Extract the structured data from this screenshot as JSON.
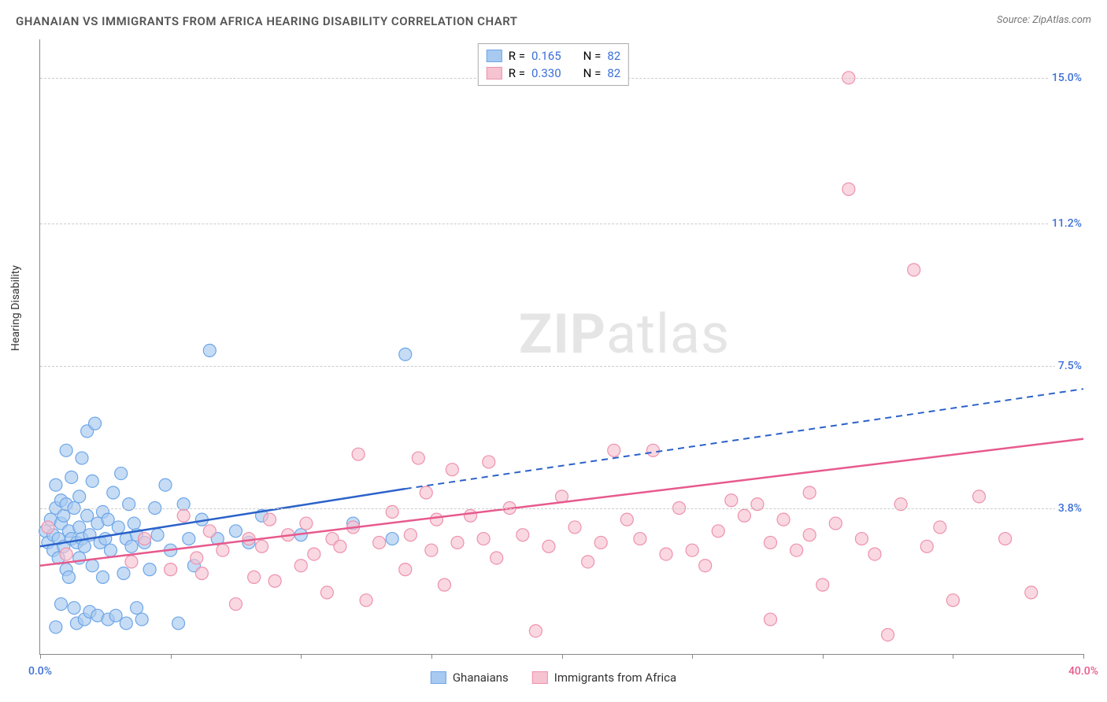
{
  "title": "GHANAIAN VS IMMIGRANTS FROM AFRICA HEARING DISABILITY CORRELATION CHART",
  "source": "Source: ZipAtlas.com",
  "ylabel": "Hearing Disability",
  "watermark_bold": "ZIP",
  "watermark_rest": "atlas",
  "chart": {
    "type": "scatter-with-regression",
    "xlim": [
      0,
      40
    ],
    "ylim": [
      0,
      16
    ],
    "xticks": [
      0,
      5,
      10,
      15,
      20,
      25,
      30,
      35,
      40
    ],
    "yticks": [
      {
        "v": 3.8,
        "label": "3.8%"
      },
      {
        "v": 7.5,
        "label": "7.5%"
      },
      {
        "v": 11.2,
        "label": "11.2%"
      },
      {
        "v": 15.0,
        "label": "15.0%"
      }
    ],
    "xaxis_labels": {
      "min": "0.0%",
      "max": "40.0%"
    },
    "background_color": "#ffffff",
    "grid_color": "#cccccc",
    "axis_color": "#888888",
    "tick_color_blue": "#3b6fd6",
    "tick_color_pink": "#e75a8d",
    "series": [
      {
        "name": "Ghanaians",
        "fill": "#a8caf0",
        "stroke": "#6da6e8",
        "line_color": "#2b62c9",
        "R": "0.165",
        "N": "82",
        "reg_start": {
          "x": 0,
          "y": 2.8
        },
        "reg_solid_end": {
          "x": 14,
          "y": 4.3
        },
        "reg_dash_end": {
          "x": 40,
          "y": 6.9
        },
        "points": [
          [
            0.2,
            3.2
          ],
          [
            0.3,
            2.9
          ],
          [
            0.4,
            3.5
          ],
          [
            0.5,
            2.7
          ],
          [
            0.5,
            3.1
          ],
          [
            0.6,
            3.8
          ],
          [
            0.6,
            4.4
          ],
          [
            0.6,
            0.7
          ],
          [
            0.7,
            2.5
          ],
          [
            0.7,
            3.0
          ],
          [
            0.8,
            3.4
          ],
          [
            0.8,
            4.0
          ],
          [
            0.8,
            1.3
          ],
          [
            0.9,
            2.8
          ],
          [
            0.9,
            3.6
          ],
          [
            1.0,
            2.2
          ],
          [
            1.0,
            3.9
          ],
          [
            1.0,
            5.3
          ],
          [
            1.1,
            3.2
          ],
          [
            1.1,
            2.0
          ],
          [
            1.2,
            4.6
          ],
          [
            1.2,
            3.0
          ],
          [
            1.3,
            1.2
          ],
          [
            1.3,
            3.8
          ],
          [
            1.4,
            2.9
          ],
          [
            1.4,
            0.8
          ],
          [
            1.5,
            3.3
          ],
          [
            1.5,
            2.5
          ],
          [
            1.5,
            4.1
          ],
          [
            1.6,
            5.1
          ],
          [
            1.6,
            3.0
          ],
          [
            1.7,
            0.9
          ],
          [
            1.7,
            2.8
          ],
          [
            1.8,
            5.8
          ],
          [
            1.8,
            3.6
          ],
          [
            1.9,
            1.1
          ],
          [
            1.9,
            3.1
          ],
          [
            2.0,
            2.3
          ],
          [
            2.0,
            4.5
          ],
          [
            2.1,
            6.0
          ],
          [
            2.2,
            3.4
          ],
          [
            2.2,
            1.0
          ],
          [
            2.3,
            2.9
          ],
          [
            2.4,
            2.0
          ],
          [
            2.4,
            3.7
          ],
          [
            2.5,
            3.0
          ],
          [
            2.6,
            0.9
          ],
          [
            2.6,
            3.5
          ],
          [
            2.7,
            2.7
          ],
          [
            2.8,
            4.2
          ],
          [
            2.9,
            1.0
          ],
          [
            3.0,
            3.3
          ],
          [
            3.1,
            4.7
          ],
          [
            3.2,
            2.1
          ],
          [
            3.3,
            0.8
          ],
          [
            3.3,
            3.0
          ],
          [
            3.4,
            3.9
          ],
          [
            3.5,
            2.8
          ],
          [
            3.6,
            3.4
          ],
          [
            3.7,
            1.2
          ],
          [
            3.7,
            3.1
          ],
          [
            3.9,
            0.9
          ],
          [
            4.0,
            2.9
          ],
          [
            4.2,
            2.2
          ],
          [
            4.4,
            3.8
          ],
          [
            4.5,
            3.1
          ],
          [
            4.8,
            4.4
          ],
          [
            5.0,
            2.7
          ],
          [
            5.3,
            0.8
          ],
          [
            5.5,
            3.9
          ],
          [
            5.7,
            3.0
          ],
          [
            5.9,
            2.3
          ],
          [
            6.2,
            3.5
          ],
          [
            6.5,
            7.9
          ],
          [
            6.8,
            3.0
          ],
          [
            7.5,
            3.2
          ],
          [
            8.0,
            2.9
          ],
          [
            8.5,
            3.6
          ],
          [
            10.0,
            3.1
          ],
          [
            12.0,
            3.4
          ],
          [
            13.5,
            3.0
          ],
          [
            14.0,
            7.8
          ]
        ]
      },
      {
        "name": "Immigrants from Africa",
        "fill": "#f6c3d1",
        "stroke": "#ee91ad",
        "line_color": "#e75a8d",
        "R": "0.330",
        "N": "82",
        "reg_start": {
          "x": 0,
          "y": 2.3
        },
        "reg_solid_end": {
          "x": 40,
          "y": 5.6
        },
        "reg_dash_end": null,
        "points": [
          [
            0.3,
            3.3
          ],
          [
            1.0,
            2.6
          ],
          [
            3.5,
            2.4
          ],
          [
            4.0,
            3.0
          ],
          [
            5.0,
            2.2
          ],
          [
            5.5,
            3.6
          ],
          [
            6.0,
            2.5
          ],
          [
            6.2,
            2.1
          ],
          [
            6.5,
            3.2
          ],
          [
            7.0,
            2.7
          ],
          [
            7.5,
            1.3
          ],
          [
            8.0,
            3.0
          ],
          [
            8.2,
            2.0
          ],
          [
            8.5,
            2.8
          ],
          [
            8.8,
            3.5
          ],
          [
            9.0,
            1.9
          ],
          [
            9.5,
            3.1
          ],
          [
            10.0,
            2.3
          ],
          [
            10.2,
            3.4
          ],
          [
            10.5,
            2.6
          ],
          [
            11.0,
            1.6
          ],
          [
            11.2,
            3.0
          ],
          [
            11.5,
            2.8
          ],
          [
            12.0,
            3.3
          ],
          [
            12.2,
            5.2
          ],
          [
            12.5,
            1.4
          ],
          [
            13.0,
            2.9
          ],
          [
            13.5,
            3.7
          ],
          [
            14.0,
            2.2
          ],
          [
            14.2,
            3.1
          ],
          [
            14.5,
            5.1
          ],
          [
            14.8,
            4.2
          ],
          [
            15.0,
            2.7
          ],
          [
            15.2,
            3.5
          ],
          [
            15.5,
            1.8
          ],
          [
            15.8,
            4.8
          ],
          [
            16.0,
            2.9
          ],
          [
            16.5,
            3.6
          ],
          [
            17.0,
            3.0
          ],
          [
            17.2,
            5.0
          ],
          [
            17.5,
            2.5
          ],
          [
            18.0,
            3.8
          ],
          [
            18.5,
            3.1
          ],
          [
            19.0,
            0.6
          ],
          [
            19.5,
            2.8
          ],
          [
            20.0,
            4.1
          ],
          [
            20.5,
            3.3
          ],
          [
            21.0,
            2.4
          ],
          [
            21.5,
            2.9
          ],
          [
            22.0,
            5.3
          ],
          [
            22.5,
            3.5
          ],
          [
            23.0,
            3.0
          ],
          [
            23.5,
            5.3
          ],
          [
            24.0,
            2.6
          ],
          [
            24.5,
            3.8
          ],
          [
            25.0,
            2.7
          ],
          [
            25.5,
            2.3
          ],
          [
            26.0,
            3.2
          ],
          [
            26.5,
            4.0
          ],
          [
            27.0,
            3.6
          ],
          [
            27.5,
            3.9
          ],
          [
            28.0,
            2.9
          ],
          [
            28.5,
            3.5
          ],
          [
            29.0,
            2.7
          ],
          [
            29.5,
            4.2
          ],
          [
            30.0,
            1.8
          ],
          [
            30.5,
            3.4
          ],
          [
            31.0,
            12.1
          ],
          [
            31.5,
            3.0
          ],
          [
            32.0,
            2.6
          ],
          [
            32.5,
            0.5
          ],
          [
            33.0,
            3.9
          ],
          [
            33.5,
            10.0
          ],
          [
            34.0,
            2.8
          ],
          [
            34.5,
            3.3
          ],
          [
            35.0,
            1.4
          ],
          [
            36.0,
            4.1
          ],
          [
            37.0,
            3.0
          ],
          [
            38.0,
            1.6
          ],
          [
            31.0,
            15.0
          ],
          [
            28.0,
            0.9
          ],
          [
            29.5,
            3.1
          ]
        ]
      }
    ]
  },
  "legend_top_labels": {
    "R": "R =",
    "N": "N ="
  },
  "legend_bottom": [
    "Ghanaians",
    "Immigrants from Africa"
  ]
}
